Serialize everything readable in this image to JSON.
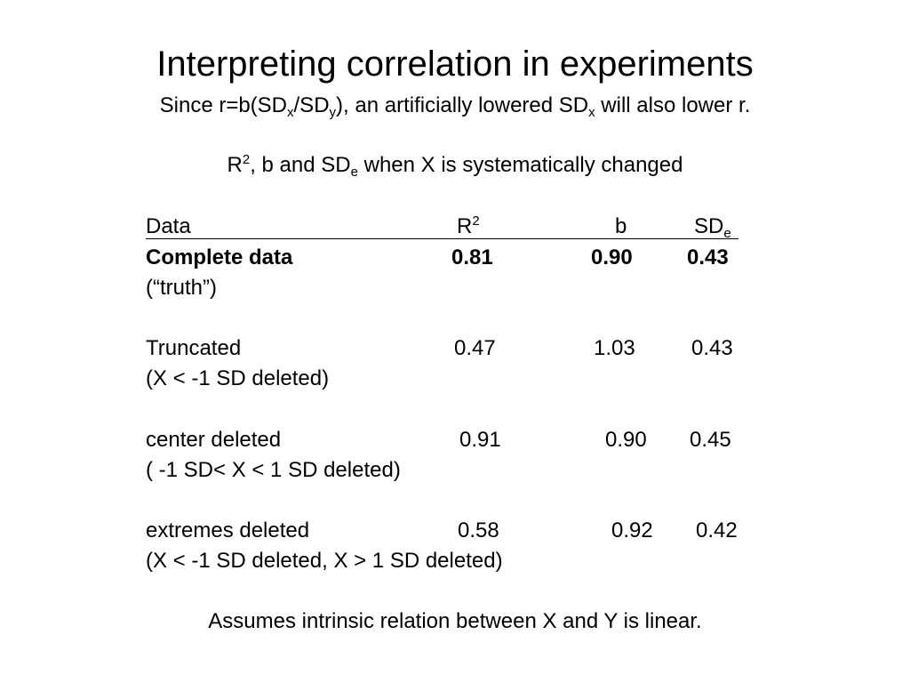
{
  "slide": {
    "title": "Interpreting correlation in experiments",
    "subtitle": {
      "part1": "Since r=b(SD",
      "sub_x": "x",
      "part2": "/SD",
      "sub_y": "y",
      "part3": "), an artificially lowered SD",
      "sub_x2": "x",
      "part4": " will also lower r."
    },
    "table_heading": {
      "part1": "R",
      "sup": "2",
      "part2": ", b and SD",
      "sub": "e",
      "part3": " when X is systematically changed"
    },
    "footer": "Assumes intrinsic relation between X and Y is linear."
  },
  "table": {
    "header": {
      "data": "Data",
      "r2_base": "R",
      "r2_sup": "2",
      "b": "b",
      "sde_base": "SD",
      "sde_sub": "e"
    },
    "rows": [
      {
        "label": "Complete data",
        "note": "(“truth”)",
        "r2": "0.81",
        "b": "0.90",
        "sde": "0.43"
      },
      {
        "label": "Truncated",
        "note": "(X < -1 SD deleted)",
        "r2": "0.47",
        "b": "1.03",
        "sde": "0.43"
      },
      {
        "label": "center deleted",
        "note": "( -1 SD< X < 1 SD deleted)",
        "r2": "0.91",
        "b": "0.90",
        "sde": "0.45"
      },
      {
        "label": "extremes deleted",
        "note": "(X < -1 SD deleted, X > 1 SD deleted)",
        "r2": "0.58",
        "b": "0.92",
        "sde": "0.42"
      }
    ]
  }
}
